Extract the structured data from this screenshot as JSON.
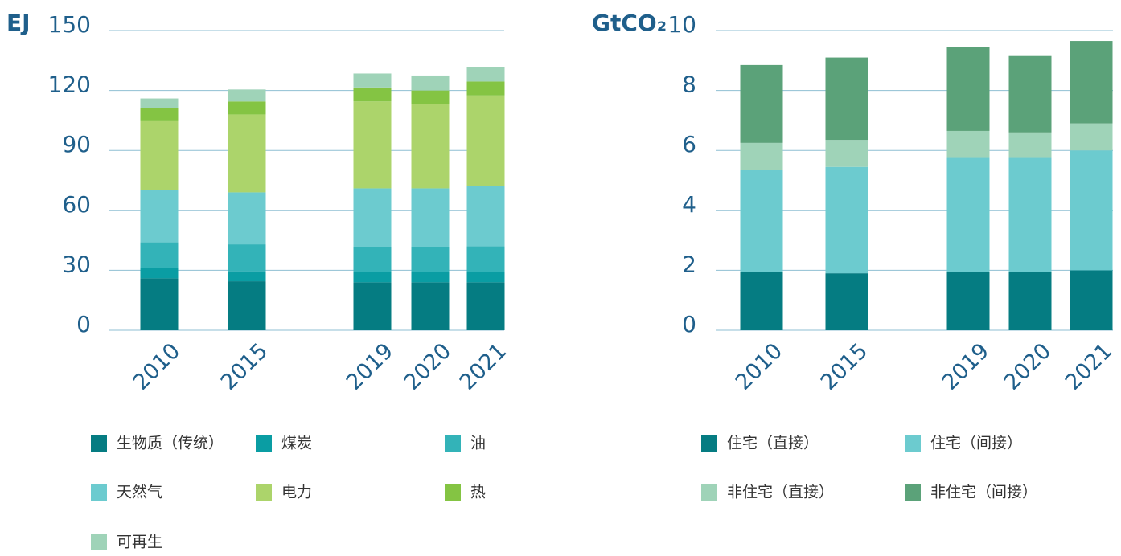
{
  "chart_data": [
    {
      "type": "bar",
      "stacked": true,
      "y_label": "EJ",
      "categories": [
        "2010",
        "2015",
        "2019",
        "2020",
        "2021"
      ],
      "ylim": [
        0,
        150
      ],
      "yticks": [
        0,
        30,
        60,
        90,
        120,
        150
      ],
      "grid": true,
      "series": [
        {
          "name": "生物质（传统）",
          "color": "#057c82",
          "values": [
            26,
            24.5,
            24,
            24,
            24
          ]
        },
        {
          "name": "煤炭",
          "color": "#0a9da3",
          "values": [
            5,
            5,
            5,
            5,
            5
          ]
        },
        {
          "name": "油",
          "color": "#33b3b8",
          "values": [
            13,
            13.5,
            12.5,
            12.5,
            13
          ]
        },
        {
          "name": "天然气",
          "color": "#6ccbcf",
          "values": [
            26,
            26,
            29.5,
            29.5,
            30
          ]
        },
        {
          "name": "电力",
          "color": "#acd46b",
          "values": [
            35,
            39,
            43.5,
            42,
            45.5
          ]
        },
        {
          "name": "热",
          "color": "#84c443",
          "values": [
            6,
            6.5,
            7,
            7,
            7
          ]
        },
        {
          "name": "可再生",
          "color": "#9fd3b8",
          "values": [
            5,
            6,
            7,
            7.5,
            7
          ]
        }
      ]
    },
    {
      "type": "bar",
      "stacked": true,
      "y_label": "GtCO₂",
      "categories": [
        "2010",
        "2015",
        "2019",
        "2020",
        "2021"
      ],
      "ylim": [
        0,
        10
      ],
      "yticks": [
        0,
        2,
        4,
        6,
        8,
        10
      ],
      "grid": true,
      "series": [
        {
          "name": "住宅（直接）",
          "color": "#057c82",
          "values": [
            1.95,
            1.9,
            1.95,
            1.95,
            2.0
          ]
        },
        {
          "name": "住宅（间接）",
          "color": "#6ccbcf",
          "values": [
            3.4,
            3.55,
            3.8,
            3.8,
            4.0
          ]
        },
        {
          "name": "非住宅（直接）",
          "color": "#9fd3b8",
          "values": [
            0.9,
            0.9,
            0.9,
            0.85,
            0.9
          ]
        },
        {
          "name": "非住宅（间接）",
          "color": "#5ba279",
          "values": [
            2.6,
            2.75,
            2.8,
            2.55,
            2.75
          ]
        }
      ]
    }
  ]
}
